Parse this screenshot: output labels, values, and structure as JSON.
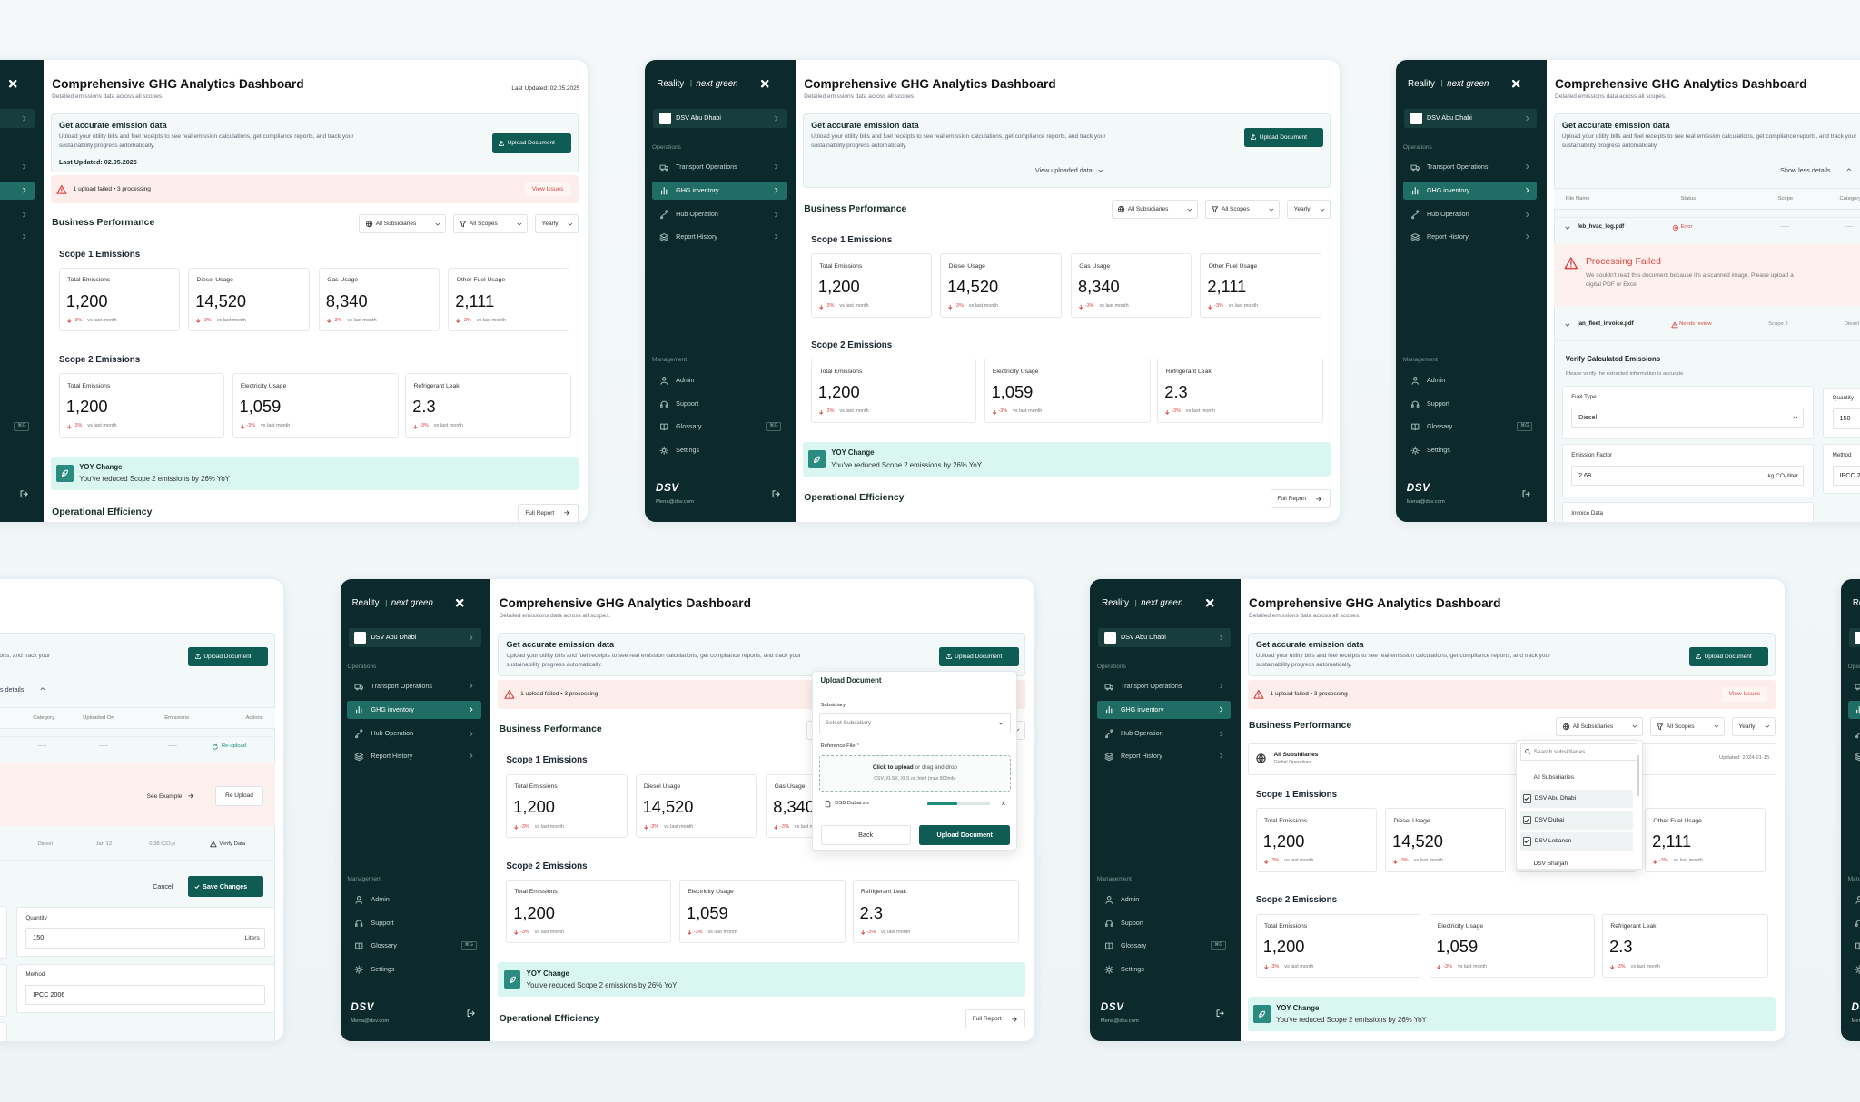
{
  "brand": {
    "name": "Reality",
    "separator": "|",
    "tagline": "next green"
  },
  "sidebar": {
    "subsidiary": "DSV Abu Dhabi",
    "operations_label": "Operations",
    "operations": [
      "Transport Operations",
      "GHG inventory",
      "Hub Operation",
      "Report History"
    ],
    "management_label": "Management",
    "management": [
      "Admin",
      "Support",
      "Glossary",
      "Settings"
    ],
    "shortcut": "⌘G",
    "logo": "DSV",
    "email": "Mena@dsv.com"
  },
  "header": {
    "title": "Comprehensive GHG Analytics Dashboard",
    "subtitle": "Detailed emissions data across all scopes.",
    "last_updated": "Last Updated: 02.05.2025"
  },
  "banner": {
    "title": "Get accurate emission data",
    "text": "Upload your utility bills and fuel receipts to see real emission calculations, get compliance reports, and track your sustainability progress automatically.",
    "last_updated": "Last Updated: 02.05.2025",
    "upload_button": "Upload Document",
    "view_uploaded": "View uploaded data",
    "show_less": "Show less details"
  },
  "alert": {
    "text": "1 upload failed • 3 processing",
    "link": "View Issues"
  },
  "business_performance": {
    "title": "Business Performance",
    "filters": [
      "All Subsidiaries",
      "All Scopes",
      "Yearly"
    ],
    "operational_title": "Operational Efficiency",
    "full_report": "Full Report"
  },
  "scopes": [
    {
      "title": "Scope 1 Emissions",
      "metrics": [
        {
          "label": "Total Emissions",
          "value": "1,200",
          "change": "-3%",
          "period": "vs last month"
        },
        {
          "label": "Diesel Usage",
          "value": "14,520",
          "change": "-3%",
          "period": "vs last month"
        },
        {
          "label": "Gas Usage",
          "value": "8,340",
          "change": "-3%",
          "period": "vs last month"
        },
        {
          "label": "Other Fuel Usage",
          "value": "2,111",
          "change": "-3%",
          "period": "vs last month"
        }
      ]
    },
    {
      "title": "Scope 2 Emissions",
      "metrics": [
        {
          "label": "Total Emissions",
          "value": "1,200",
          "change": "-3%",
          "period": "vs last month"
        },
        {
          "label": "Electricity Usage",
          "value": "1,059",
          "change": "-3%",
          "period": "vs last month"
        },
        {
          "label": "Refrigerant Leak",
          "value": "2.3",
          "change": "-3%",
          "period": "vs last month"
        }
      ]
    }
  ],
  "yoy": {
    "title": "YOY Change",
    "text": "You've reduced Scope 2 emissions by 26% YoY"
  },
  "upload_modal": {
    "title": "Upload Document",
    "subsidiary_label": "Subsidiary",
    "subsidiary_placeholder": "Select Subsidiary",
    "file_label": "Reference File",
    "required": "*",
    "drop_action": "Click to upload",
    "drop_text": "or drag and drop",
    "formats": "CSV, XLSX, XLS or .html (max 800mb)",
    "file_name": "DSB Dubai.xls",
    "back": "Back",
    "submit": "Upload Document"
  },
  "subsidiary_filter": {
    "selected_title": "All Subsidiaries",
    "selected_subtitle": "Global Operations",
    "updated": "Updated: 2024-01-15",
    "search_placeholder": "Search subsidiaries",
    "options": [
      {
        "label": "All Subsidiaries",
        "checked": false
      },
      {
        "label": "DSV Abu Dhabi",
        "checked": true
      },
      {
        "label": "DSV Dubai",
        "checked": true
      },
      {
        "label": "DSV Lebanon",
        "checked": true
      },
      {
        "label": "DSV Sharjah",
        "checked": false
      }
    ]
  },
  "uploads": {
    "columns": [
      "File Name",
      "Status",
      "Scope",
      "Category",
      "Uploaded On",
      "Emissions",
      "Actions"
    ],
    "rows": [
      {
        "file": "feb_hvac_log.pdf",
        "status": "Error",
        "scope": "-----",
        "category": "-----",
        "uploaded": "-----",
        "emissions": "-----",
        "action": "Re-upload"
      },
      {
        "file": "jan_fleet_invoice.pdf",
        "status": "Needs review",
        "scope": "Scope 2",
        "category": "Diesel",
        "uploaded": "Jan 12",
        "emissions": "0.38 tCO₂e",
        "action": "Verify Data"
      }
    ],
    "error": {
      "title": "Processing Failed",
      "text": "We couldn't read this document because it's a scanned image. Please upload a digital PDF or Excel",
      "example": "See Example",
      "reupload": "Re Upload"
    },
    "verify": {
      "title": "Verify Calculated Emissions",
      "subtitle": "Please verify the extracted information is accurate",
      "cancel": "Cancel",
      "save": "Save Changes",
      "fields": {
        "fuel_type": {
          "label": "Fuel Type",
          "value": "Diesel"
        },
        "quantity": {
          "label": "Quantity",
          "value": "150",
          "unit": "Liters"
        },
        "emission_factor": {
          "label": "Emission Factor",
          "value": "2.68",
          "unit": "kg CO₂/liter"
        },
        "method": {
          "label": "Method",
          "value": "IPCC 2006"
        },
        "invoice": {
          "label": "Invoice Data"
        }
      }
    }
  }
}
